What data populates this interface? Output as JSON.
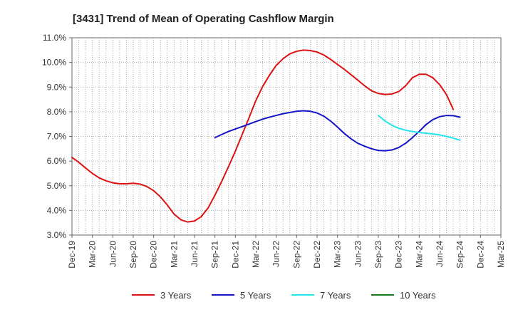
{
  "chart_data": {
    "type": "line",
    "title": "[3431]  Trend of Mean of Operating Cashflow Margin",
    "xlabel": "",
    "ylabel": "",
    "ylim": [
      3.0,
      11.0
    ],
    "y_ticks": [
      3.0,
      4.0,
      5.0,
      6.0,
      7.0,
      8.0,
      9.0,
      10.0,
      11.0
    ],
    "y_tick_labels": [
      "3.0%",
      "4.0%",
      "5.0%",
      "6.0%",
      "7.0%",
      "8.0%",
      "9.0%",
      "10.0%",
      "11.0%"
    ],
    "x_tick_labels": [
      "Dec-19",
      "Mar-20",
      "Jun-20",
      "Sep-20",
      "Dec-20",
      "Mar-21",
      "Jun-21",
      "Sep-21",
      "Dec-21",
      "Mar-22",
      "Jun-22",
      "Sep-22",
      "Dec-22",
      "Mar-23",
      "Jun-23",
      "Sep-23",
      "Dec-23",
      "Mar-24",
      "Jun-24",
      "Sep-24",
      "Dec-24",
      "Mar-25"
    ],
    "grid": true,
    "legend_position": "bottom",
    "series": [
      {
        "name": "3 Years",
        "color": "#dd1111",
        "x": [
          "Dec-19",
          "Jan-20",
          "Feb-20",
          "Mar-20",
          "Apr-20",
          "May-20",
          "Jun-20",
          "Jul-20",
          "Aug-20",
          "Sep-20",
          "Oct-20",
          "Nov-20",
          "Dec-20",
          "Jan-21",
          "Feb-21",
          "Mar-21",
          "Apr-21",
          "May-21",
          "Jun-21",
          "Jul-21",
          "Aug-21",
          "Sep-21",
          "Oct-21",
          "Nov-21",
          "Dec-21",
          "Jan-22",
          "Feb-22",
          "Mar-22",
          "Apr-22",
          "May-22",
          "Jun-22",
          "Jul-22",
          "Aug-22",
          "Sep-22",
          "Oct-22",
          "Nov-22",
          "Dec-22",
          "Jan-23",
          "Feb-23",
          "Mar-23",
          "Apr-23",
          "May-23",
          "Jun-23",
          "Jul-23",
          "Aug-23",
          "Sep-23",
          "Oct-23",
          "Nov-23",
          "Dec-23",
          "Jan-24",
          "Feb-24",
          "Mar-24",
          "Apr-24",
          "May-24",
          "Jun-24",
          "Jul-24",
          "Aug-24",
          "Sep-24"
        ],
        "values": [
          6.15,
          5.95,
          5.72,
          5.5,
          5.32,
          5.2,
          5.12,
          5.08,
          5.08,
          5.1,
          5.07,
          4.97,
          4.8,
          4.55,
          4.22,
          3.85,
          3.62,
          3.53,
          3.57,
          3.75,
          4.1,
          4.62,
          5.18,
          5.78,
          6.4,
          7.08,
          7.75,
          8.45,
          9.02,
          9.48,
          9.88,
          10.15,
          10.35,
          10.45,
          10.5,
          10.48,
          10.42,
          10.3,
          10.12,
          9.92,
          9.72,
          9.5,
          9.28,
          9.05,
          8.85,
          8.74,
          8.7,
          8.72,
          8.82,
          9.05,
          9.38,
          9.52,
          9.52,
          9.38,
          9.1,
          8.7,
          8.1,
          null
        ]
      },
      {
        "name": "5 Years",
        "color": "#1515c8",
        "x": [
          "Sep-21",
          "Oct-21",
          "Nov-21",
          "Dec-21",
          "Jan-22",
          "Feb-22",
          "Mar-22",
          "Apr-22",
          "May-22",
          "Jun-22",
          "Jul-22",
          "Aug-22",
          "Sep-22",
          "Oct-22",
          "Nov-22",
          "Dec-22",
          "Jan-23",
          "Feb-23",
          "Mar-23",
          "Apr-23",
          "May-23",
          "Jun-23",
          "Jul-23",
          "Aug-23",
          "Sep-23",
          "Oct-23",
          "Nov-23",
          "Dec-23",
          "Jan-24",
          "Feb-24",
          "Mar-24",
          "Apr-24",
          "May-24",
          "Jun-24",
          "Jul-24",
          "Aug-24",
          "Sep-24"
        ],
        "values": [
          6.95,
          7.08,
          7.2,
          7.3,
          7.4,
          7.5,
          7.6,
          7.7,
          7.78,
          7.85,
          7.92,
          7.97,
          8.02,
          8.04,
          8.02,
          7.95,
          7.82,
          7.62,
          7.38,
          7.12,
          6.9,
          6.72,
          6.6,
          6.5,
          6.43,
          6.42,
          6.45,
          6.55,
          6.72,
          6.95,
          7.2,
          7.48,
          7.68,
          7.8,
          7.85,
          7.84,
          7.78
        ]
      },
      {
        "name": "7 Years",
        "color": "#22e6ee",
        "x": [
          "Sep-23",
          "Oct-23",
          "Nov-23",
          "Dec-23",
          "Jan-24",
          "Feb-24",
          "Mar-24",
          "Apr-24",
          "May-24",
          "Jun-24",
          "Jul-24",
          "Aug-24",
          "Sep-24"
        ],
        "values": [
          7.85,
          7.62,
          7.45,
          7.33,
          7.25,
          7.2,
          7.16,
          7.13,
          7.1,
          7.06,
          7.0,
          6.93,
          6.85
        ]
      },
      {
        "name": "10 Years",
        "color": "#1a7a1a",
        "x": [],
        "values": []
      }
    ]
  }
}
